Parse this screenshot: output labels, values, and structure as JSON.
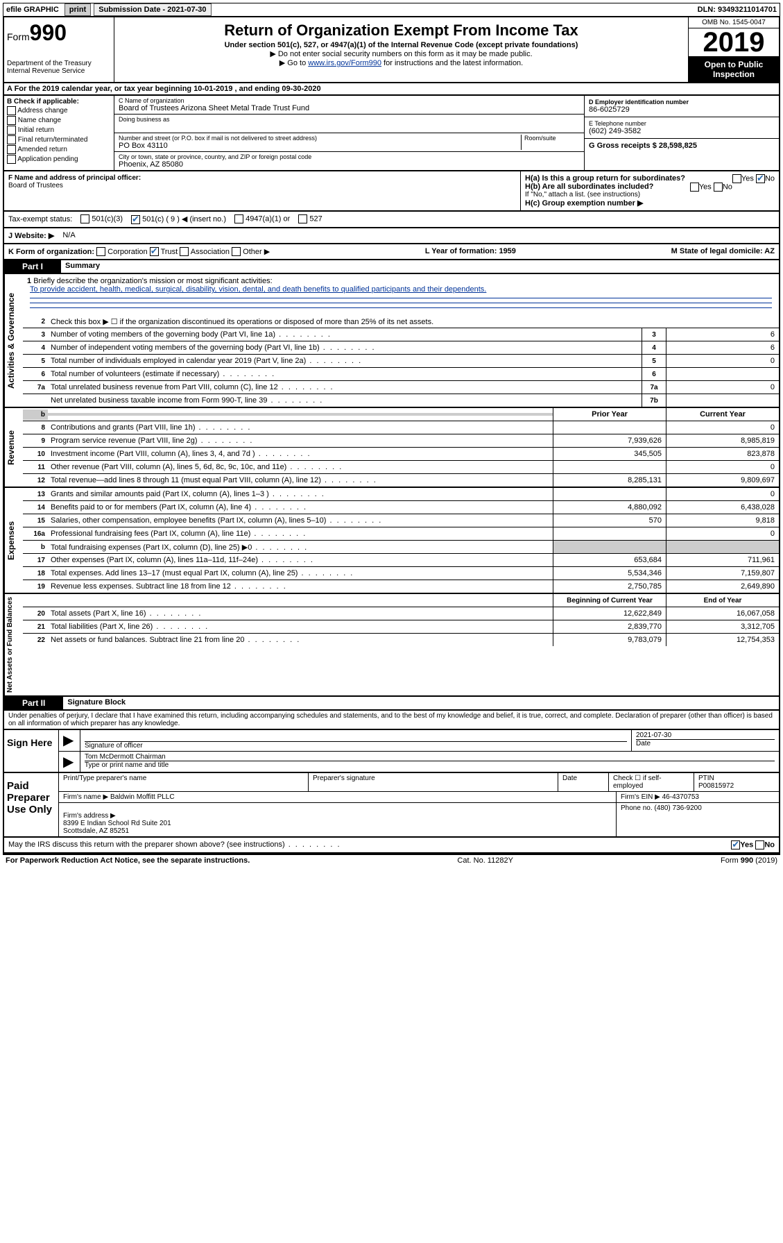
{
  "topbar": {
    "efile_label": "efile GRAPHIC",
    "print_btn": "print",
    "submission_label": "Submission Date - 2021-07-30",
    "dln": "DLN: 93493211014701"
  },
  "header": {
    "form_word": "Form",
    "form_num": "990",
    "dept": "Department of the Treasury\nInternal Revenue Service",
    "title": "Return of Organization Exempt From Income Tax",
    "subtitle": "Under section 501(c), 527, or 4947(a)(1) of the Internal Revenue Code (except private foundations)",
    "note1": "▶ Do not enter social security numbers on this form as it may be made public.",
    "note2_a": "▶ Go to ",
    "note2_link": "www.irs.gov/Form990",
    "note2_b": " for instructions and the latest information.",
    "omb": "OMB No. 1545-0047",
    "year": "2019",
    "open": "Open to Public Inspection"
  },
  "period": "A For the 2019 calendar year, or tax year beginning 10-01-2019   , and ending 09-30-2020",
  "boxB": {
    "title": "B Check if applicable:",
    "items": [
      "Address change",
      "Name change",
      "Initial return",
      "Final return/terminated",
      "Amended return",
      "Application pending"
    ]
  },
  "boxC": {
    "name_label": "C Name of organization",
    "name": "Board of Trustees Arizona Sheet Metal Trade Trust Fund",
    "dba_label": "Doing business as",
    "street_label": "Number and street (or P.O. box if mail is not delivered to street address)",
    "room_label": "Room/suite",
    "street": "PO Box 43110",
    "city_label": "City or town, state or province, country, and ZIP or foreign postal code",
    "city": "Phoenix, AZ  85080"
  },
  "boxD": {
    "ein_label": "D Employer identification number",
    "ein": "86-6025729",
    "phone_label": "E Telephone number",
    "phone": "(602) 249-3582",
    "gross_label": "G Gross receipts $ 28,598,825"
  },
  "boxF": {
    "label": "F  Name and address of principal officer:",
    "value": "Board of Trustees"
  },
  "boxH": {
    "a": "H(a)  Is this a group return for subordinates?",
    "b": "H(b)  Are all subordinates included?",
    "b_note": "If \"No,\" attach a list. (see instructions)",
    "c": "H(c)  Group exemption number ▶",
    "yes": "Yes",
    "no": "No"
  },
  "taxexempt": {
    "label": "Tax-exempt status:",
    "a": "501(c)(3)",
    "b": "501(c) ( 9 ) ◀ (insert no.)",
    "c": "4947(a)(1) or",
    "d": "527"
  },
  "website": {
    "label": "J   Website: ▶",
    "value": "N/A"
  },
  "kform": {
    "label": "K Form of organization:",
    "opts": [
      "Corporation",
      "Trust",
      "Association",
      "Other ▶"
    ],
    "lyr_label": "L Year of formation: 1959",
    "mstate_label": "M State of legal domicile: AZ"
  },
  "part1": {
    "header": "Part I",
    "title": "Summary",
    "q1_label": "1",
    "q1": "Briefly describe the organization's mission or most significant activities:",
    "mission": "To provide accident, health, medical, surgical, disability, vision, dental, and death benefits to qualified participants and their dependents.",
    "q2": "Check this box ▶ ☐  if the organization discontinued its operations or disposed of more than 25% of its net assets.",
    "lines_gov": [
      {
        "n": "3",
        "t": "Number of voting members of the governing body (Part VI, line 1a)",
        "box": "3",
        "v": "6"
      },
      {
        "n": "4",
        "t": "Number of independent voting members of the governing body (Part VI, line 1b)",
        "box": "4",
        "v": "6"
      },
      {
        "n": "5",
        "t": "Total number of individuals employed in calendar year 2019 (Part V, line 2a)",
        "box": "5",
        "v": "0"
      },
      {
        "n": "6",
        "t": "Total number of volunteers (estimate if necessary)",
        "box": "6",
        "v": ""
      },
      {
        "n": "7a",
        "t": "Total unrelated business revenue from Part VIII, column (C), line 12",
        "box": "7a",
        "v": "0"
      },
      {
        "n": "",
        "t": "Net unrelated business taxable income from Form 990-T, line 39",
        "box": "7b",
        "v": ""
      }
    ],
    "col_prior": "Prior Year",
    "col_current": "Current Year",
    "lines_rev": [
      {
        "n": "8",
        "t": "Contributions and grants (Part VIII, line 1h)",
        "p": "",
        "c": "0"
      },
      {
        "n": "9",
        "t": "Program service revenue (Part VIII, line 2g)",
        "p": "7,939,626",
        "c": "8,985,819"
      },
      {
        "n": "10",
        "t": "Investment income (Part VIII, column (A), lines 3, 4, and 7d )",
        "p": "345,505",
        "c": "823,878"
      },
      {
        "n": "11",
        "t": "Other revenue (Part VIII, column (A), lines 5, 6d, 8c, 9c, 10c, and 11e)",
        "p": "",
        "c": "0"
      },
      {
        "n": "12",
        "t": "Total revenue—add lines 8 through 11 (must equal Part VIII, column (A), line 12)",
        "p": "8,285,131",
        "c": "9,809,697"
      }
    ],
    "lines_exp": [
      {
        "n": "13",
        "t": "Grants and similar amounts paid (Part IX, column (A), lines 1–3 )",
        "p": "",
        "c": "0"
      },
      {
        "n": "14",
        "t": "Benefits paid to or for members (Part IX, column (A), line 4)",
        "p": "4,880,092",
        "c": "6,438,028"
      },
      {
        "n": "15",
        "t": "Salaries, other compensation, employee benefits (Part IX, column (A), lines 5–10)",
        "p": "570",
        "c": "9,818"
      },
      {
        "n": "16a",
        "t": "Professional fundraising fees (Part IX, column (A), line 11e)",
        "p": "",
        "c": "0"
      },
      {
        "n": "b",
        "t": "Total fundraising expenses (Part IX, column (D), line 25) ▶0",
        "p": "shade",
        "c": "shade"
      },
      {
        "n": "17",
        "t": "Other expenses (Part IX, column (A), lines 11a–11d, 11f–24e)",
        "p": "653,684",
        "c": "711,961"
      },
      {
        "n": "18",
        "t": "Total expenses. Add lines 13–17 (must equal Part IX, column (A), line 25)",
        "p": "5,534,346",
        "c": "7,159,807"
      },
      {
        "n": "19",
        "t": "Revenue less expenses. Subtract line 18 from line 12",
        "p": "2,750,785",
        "c": "2,649,890"
      }
    ],
    "col_begin": "Beginning of Current Year",
    "col_end": "End of Year",
    "lines_net": [
      {
        "n": "20",
        "t": "Total assets (Part X, line 16)",
        "p": "12,622,849",
        "c": "16,067,058"
      },
      {
        "n": "21",
        "t": "Total liabilities (Part X, line 26)",
        "p": "2,839,770",
        "c": "3,312,705"
      },
      {
        "n": "22",
        "t": "Net assets or fund balances. Subtract line 21 from line 20",
        "p": "9,783,079",
        "c": "12,754,353"
      }
    ],
    "vlabels": {
      "gov": "Activities & Governance",
      "rev": "Revenue",
      "exp": "Expenses",
      "net": "Net Assets or Fund Balances"
    }
  },
  "part2": {
    "header": "Part II",
    "title": "Signature Block",
    "perjury": "Under penalties of perjury, I declare that I have examined this return, including accompanying schedules and statements, and to the best of my knowledge and belief, it is true, correct, and complete. Declaration of preparer (other than officer) is based on all information of which preparer has any knowledge.",
    "sign_here": "Sign Here",
    "sig_officer": "Signature of officer",
    "sig_date": "2021-07-30",
    "date_label": "Date",
    "officer_name": "Tom McDermott  Chairman",
    "type_name": "Type or print name and title",
    "paid": "Paid Preparer Use Only",
    "prep_name_label": "Print/Type preparer's name",
    "prep_sig_label": "Preparer's signature",
    "prep_date_label": "Date",
    "self_emp": "Check ☐ if self-employed",
    "ptin_label": "PTIN",
    "ptin": "P00815972",
    "firm_name_label": "Firm's name    ▶",
    "firm_name": "Baldwin Moffitt PLLC",
    "firm_ein_label": "Firm's EIN ▶",
    "firm_ein": "46-4370753",
    "firm_addr_label": "Firm's address ▶",
    "firm_addr": "8399 E Indian School Rd Suite 201\nScottsdale, AZ  85251",
    "phone_label": "Phone no.",
    "phone": "(480) 736-9200",
    "discuss": "May the IRS discuss this return with the preparer shown above? (see instructions)"
  },
  "footer": {
    "left": "For Paperwork Reduction Act Notice, see the separate instructions.",
    "mid": "Cat. No. 11282Y",
    "right": "Form 990 (2019)"
  }
}
